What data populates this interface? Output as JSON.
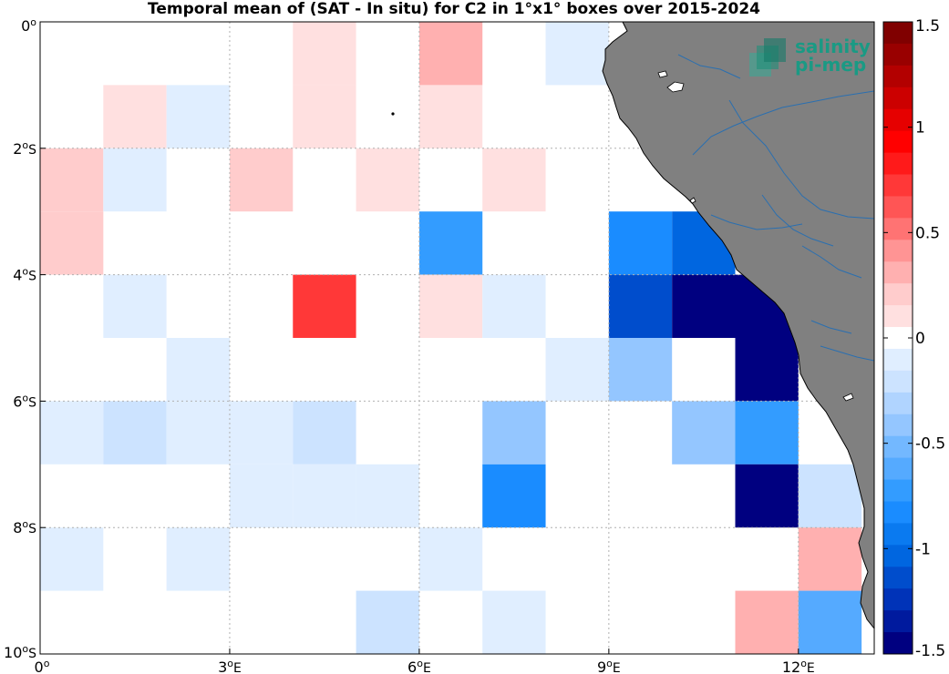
{
  "chart_data": {
    "type": "heatmap",
    "title": "Temporal mean of (SAT - In situ) for C2 in 1°x1° boxes over 2015-2024",
    "x_ticks": [
      {
        "value": 0,
        "label": "0",
        "sup": "o",
        "suffix": ""
      },
      {
        "value": 3,
        "label": "3",
        "sup": "o",
        "suffix": "E"
      },
      {
        "value": 6,
        "label": "6",
        "sup": "o",
        "suffix": "E"
      },
      {
        "value": 9,
        "label": "9",
        "sup": "o",
        "suffix": "E"
      },
      {
        "value": 12,
        "label": "12",
        "sup": "o",
        "suffix": "E"
      }
    ],
    "y_ticks": [
      {
        "value": 0,
        "label": "0",
        "sup": "o",
        "suffix": ""
      },
      {
        "value": -2,
        "label": "2",
        "sup": "o",
        "suffix": "S"
      },
      {
        "value": -4,
        "label": "4",
        "sup": "o",
        "suffix": "S"
      },
      {
        "value": -6,
        "label": "6",
        "sup": "o",
        "suffix": "S"
      },
      {
        "value": -8,
        "label": "8",
        "sup": "o",
        "suffix": "S"
      },
      {
        "value": -10,
        "label": "10",
        "sup": "o",
        "suffix": "S"
      }
    ],
    "xlim": [
      0,
      13.2
    ],
    "ylim": [
      -10,
      0
    ],
    "grid": true,
    "colorbar": {
      "range": [
        -1.5,
        1.5
      ],
      "ticks": [
        {
          "value": 1.5,
          "label": "1.5"
        },
        {
          "value": 1,
          "label": "1"
        },
        {
          "value": 0.5,
          "label": "0.5"
        },
        {
          "value": 0,
          "label": "0"
        },
        {
          "value": -0.5,
          "label": "-0.5"
        },
        {
          "value": -1,
          "label": "-1"
        },
        {
          "value": -1.5,
          "label": "-1.5"
        }
      ]
    },
    "cells": [
      {
        "lon": 4,
        "lat": 0,
        "value": 0.15
      },
      {
        "lon": 6,
        "lat": 0,
        "value": 0.35
      },
      {
        "lon": 8,
        "lat": 0,
        "value": -0.1
      },
      {
        "lon": 1,
        "lat": -1,
        "value": 0.15
      },
      {
        "lon": 2,
        "lat": -1,
        "value": -0.1
      },
      {
        "lon": 4,
        "lat": -1,
        "value": 0.15
      },
      {
        "lon": 6,
        "lat": -1,
        "value": 0.15
      },
      {
        "lon": 0,
        "lat": -2,
        "value": 0.2
      },
      {
        "lon": 1,
        "lat": -2,
        "value": -0.1
      },
      {
        "lon": 3,
        "lat": -2,
        "value": 0.2
      },
      {
        "lon": 5,
        "lat": -2,
        "value": 0.15
      },
      {
        "lon": 7,
        "lat": -2,
        "value": 0.15
      },
      {
        "lon": 0,
        "lat": -3,
        "value": 0.2
      },
      {
        "lon": 6,
        "lat": -3,
        "value": -0.75
      },
      {
        "lon": 9,
        "lat": -3,
        "value": -0.85
      },
      {
        "lon": 10,
        "lat": -3,
        "value": -1.05
      },
      {
        "lon": 1,
        "lat": -4,
        "value": -0.1
      },
      {
        "lon": 4,
        "lat": -4,
        "value": 0.75
      },
      {
        "lon": 6,
        "lat": -4,
        "value": 0.15
      },
      {
        "lon": 7,
        "lat": -4,
        "value": -0.1
      },
      {
        "lon": 9,
        "lat": -4,
        "value": -1.15
      },
      {
        "lon": 10,
        "lat": -4,
        "value": -1.5
      },
      {
        "lon": 11,
        "lat": -4,
        "value": -1.5
      },
      {
        "lon": 2,
        "lat": -5,
        "value": -0.1
      },
      {
        "lon": 8,
        "lat": -5,
        "value": -0.1
      },
      {
        "lon": 9,
        "lat": -5,
        "value": -0.4
      },
      {
        "lon": 11,
        "lat": -5,
        "value": -1.5
      },
      {
        "lon": 0,
        "lat": -6,
        "value": -0.1
      },
      {
        "lon": 1,
        "lat": -6,
        "value": -0.25
      },
      {
        "lon": 2,
        "lat": -6,
        "value": -0.1
      },
      {
        "lon": 3,
        "lat": -6,
        "value": -0.1
      },
      {
        "lon": 4,
        "lat": -6,
        "value": -0.25
      },
      {
        "lon": 7,
        "lat": -6,
        "value": -0.4
      },
      {
        "lon": 10,
        "lat": -6,
        "value": -0.45
      },
      {
        "lon": 11,
        "lat": -6,
        "value": -0.75
      },
      {
        "lon": 3,
        "lat": -7,
        "value": -0.1
      },
      {
        "lon": 4,
        "lat": -7,
        "value": -0.1
      },
      {
        "lon": 5,
        "lat": -7,
        "value": -0.1
      },
      {
        "lon": 7,
        "lat": -7,
        "value": -0.85
      },
      {
        "lon": 11,
        "lat": -7,
        "value": -1.5
      },
      {
        "lon": 12,
        "lat": -7,
        "value": -0.25
      },
      {
        "lon": 0,
        "lat": -8,
        "value": -0.1
      },
      {
        "lon": 2,
        "lat": -8,
        "value": -0.1
      },
      {
        "lon": 6,
        "lat": -8,
        "value": -0.1
      },
      {
        "lon": 12,
        "lat": -8,
        "value": 0.35
      },
      {
        "lon": 5,
        "lat": -9,
        "value": -0.25
      },
      {
        "lon": 7,
        "lat": -9,
        "value": -0.1
      },
      {
        "lon": 11,
        "lat": -9,
        "value": 0.3
      },
      {
        "lon": 12,
        "lat": -9,
        "value": -0.6
      }
    ],
    "colors": {
      "land": "#808080",
      "rivers": "#2a6fb0",
      "grid": "#b0b0b0",
      "background": "#ffffff"
    }
  },
  "logo": {
    "line1": "salinity",
    "line2": "pi-mep",
    "icon": "salinity-logo-icon"
  }
}
